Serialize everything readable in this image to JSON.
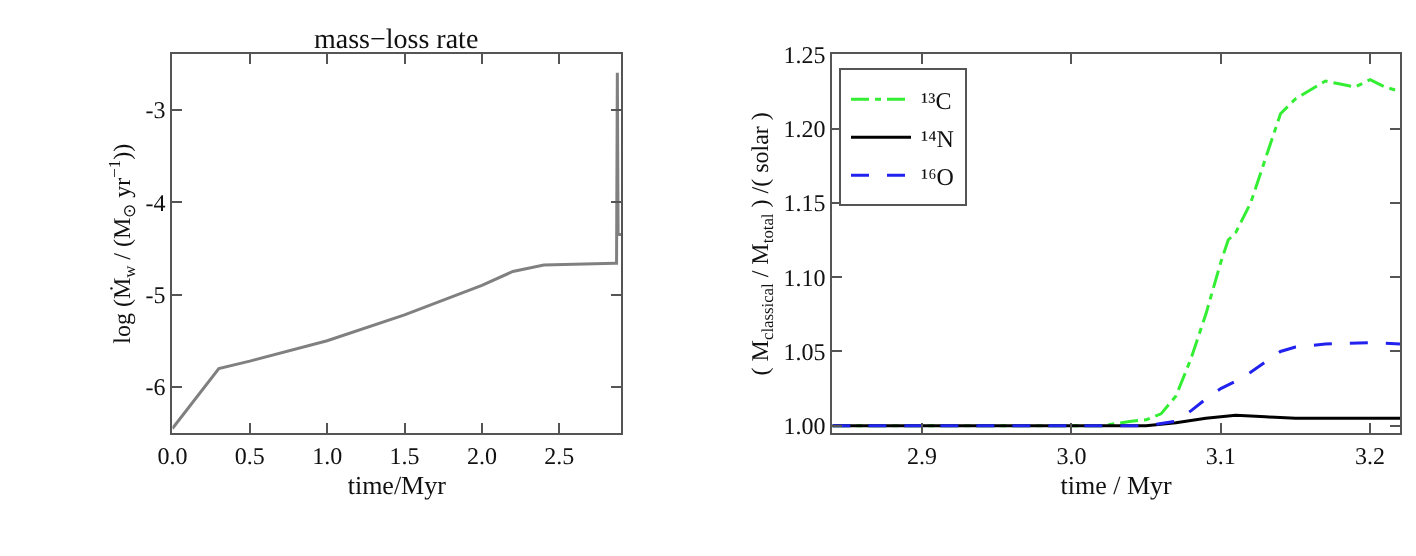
{
  "chart_data": [
    {
      "type": "line",
      "title": "mass−loss rate",
      "xlabel": "time/Myr",
      "ylabel": "log (Ṁ$_{w}$ / (M$_{⊙}$ yr$^{−1}$))",
      "xlim": [
        0,
        2.9
      ],
      "xticks": [
        {
          "value": 0,
          "label": "0.0"
        },
        {
          "value": 0.5,
          "label": "0.5"
        },
        {
          "value": 1,
          "label": "1.0"
        },
        {
          "value": 1.5,
          "label": "1.5"
        },
        {
          "value": 2,
          "label": "2.0"
        },
        {
          "value": 2.5,
          "label": "2.5"
        }
      ],
      "ylim": [
        -6.5,
        -2.4
      ],
      "yticks": [
        -6,
        -5,
        -4,
        -3
      ],
      "series": [
        {
          "color": "#808080",
          "line_style": "solid",
          "x": [
            0,
            0.3,
            0.5,
            1.0,
            1.5,
            2.0,
            2.2,
            2.4,
            2.86,
            2.87,
            2.875,
            2.88,
            2.9
          ],
          "values": [
            -6.45,
            -5.8,
            -5.72,
            -5.5,
            -5.22,
            -4.9,
            -4.75,
            -4.68,
            -4.66,
            -4.66,
            -2.6,
            -4.35,
            -4.35
          ]
        }
      ]
    },
    {
      "type": "line",
      "xlabel": "time / Myr",
      "ylabel": "( M$_{classical}$ / M$_{total}$ ) /( solar )",
      "xlim": [
        2.84,
        3.22
      ],
      "xticks": [
        2.9,
        {
          "value": 3.0,
          "label": "3.0"
        },
        3.1,
        3.2
      ],
      "ylim": [
        0.995,
        1.25
      ],
      "yticks": [
        {
          "value": 1.0,
          "label": "1.00"
        },
        1.05,
        {
          "value": 1.1,
          "label": "1.10"
        },
        1.15,
        {
          "value": 1.2,
          "label": "1.20"
        },
        1.25
      ],
      "legend": "top left",
      "series": [
        {
          "name": "¹³C",
          "color": "#33ee33",
          "line_style": "dashdot",
          "x": [
            2.84,
            3.02,
            3.04,
            3.05,
            3.06,
            3.07,
            3.08,
            3.09,
            3.1,
            3.105,
            3.11,
            3.12,
            3.13,
            3.14,
            3.15,
            3.17,
            3.18,
            3.19,
            3.2,
            3.21,
            3.22
          ],
          "values": [
            1.0,
            1.0,
            1.003,
            1.004,
            1.008,
            1.02,
            1.045,
            1.075,
            1.11,
            1.125,
            1.13,
            1.15,
            1.18,
            1.21,
            1.22,
            1.232,
            1.23,
            1.228,
            1.233,
            1.228,
            1.225
          ]
        },
        {
          "name": "¹⁴N",
          "color": "#000000",
          "line_style": "solid",
          "x": [
            2.84,
            3.05,
            3.07,
            3.09,
            3.11,
            3.13,
            3.15,
            3.22
          ],
          "values": [
            1.0,
            1.0,
            1.002,
            1.005,
            1.007,
            1.006,
            1.005,
            1.005
          ]
        },
        {
          "name": "¹⁶O",
          "color": "#2222ee",
          "line_style": "dashed",
          "x": [
            2.84,
            3.05,
            3.07,
            3.08,
            3.09,
            3.1,
            3.11,
            3.12,
            3.13,
            3.14,
            3.15,
            3.17,
            3.2,
            3.22
          ],
          "values": [
            1.0,
            1.0,
            1.003,
            1.01,
            1.018,
            1.025,
            1.03,
            1.036,
            1.043,
            1.05,
            1.053,
            1.055,
            1.056,
            1.055
          ]
        }
      ]
    }
  ]
}
